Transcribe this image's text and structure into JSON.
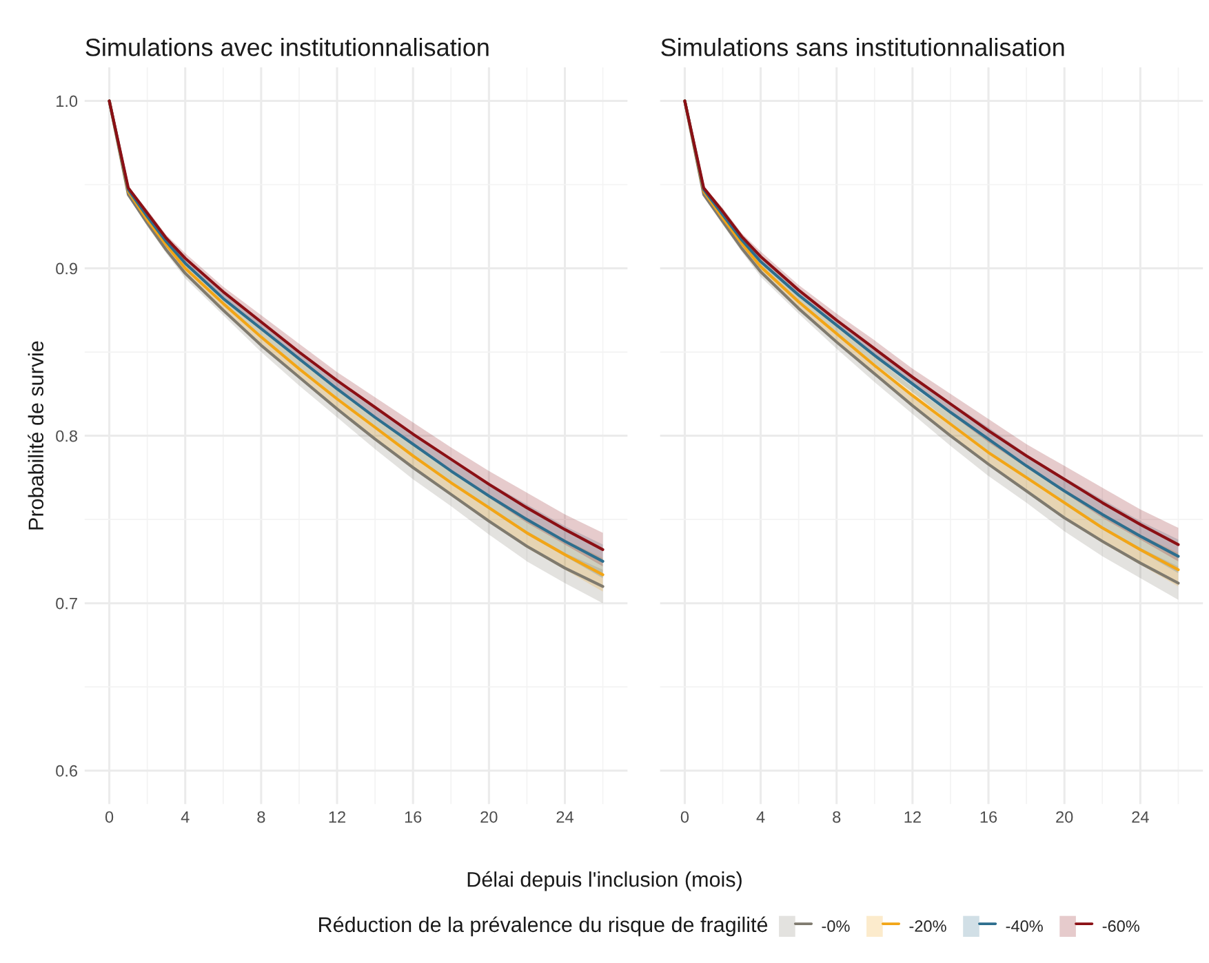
{
  "chart_data": [
    {
      "type": "line",
      "title": "Simulations avec institutionnalisation",
      "xlabel": "Délai depuis l'inclusion (mois)",
      "ylabel": "Probabilité de survie",
      "legend_title": "Réduction de la prévalence du risque de fragilité",
      "legend": "bottom",
      "grid": true,
      "line_style": "solid",
      "x": [
        0,
        1,
        2,
        3,
        4,
        6,
        8,
        10,
        12,
        14,
        16,
        18,
        20,
        22,
        24,
        26
      ],
      "xlim": [
        -1.3,
        27.3
      ],
      "xticks": [
        0,
        4,
        8,
        12,
        16,
        20,
        24
      ],
      "ylim": [
        0.58,
        1.02
      ],
      "yticks": [
        0.6,
        0.7,
        0.8,
        0.9,
        {
          "value": 1.0,
          "label": "1.0"
        }
      ],
      "series": [
        {
          "name": "-0%",
          "color": "#7f7a6e",
          "values": [
            1.0,
            0.944,
            0.927,
            0.911,
            0.897,
            0.875,
            0.854,
            0.835,
            0.816,
            0.798,
            0.781,
            0.765,
            0.749,
            0.734,
            0.721,
            0.71
          ],
          "lower": [
            1.0,
            0.943,
            0.925,
            0.909,
            0.894,
            0.872,
            0.85,
            0.83,
            0.811,
            0.792,
            0.774,
            0.758,
            0.741,
            0.725,
            0.712,
            0.7
          ],
          "upper": [
            1.0,
            0.945,
            0.929,
            0.913,
            0.9,
            0.878,
            0.858,
            0.84,
            0.821,
            0.804,
            0.788,
            0.772,
            0.757,
            0.743,
            0.73,
            0.72
          ]
        },
        {
          "name": "-20%",
          "color": "#f2a516",
          "values": [
            1.0,
            0.946,
            0.929,
            0.914,
            0.9,
            0.879,
            0.859,
            0.84,
            0.822,
            0.805,
            0.788,
            0.772,
            0.757,
            0.742,
            0.729,
            0.717
          ],
          "lower": [
            1.0,
            0.945,
            0.927,
            0.912,
            0.897,
            0.876,
            0.855,
            0.835,
            0.817,
            0.799,
            0.781,
            0.765,
            0.749,
            0.733,
            0.72,
            0.707
          ],
          "upper": [
            1.0,
            0.947,
            0.931,
            0.916,
            0.903,
            0.882,
            0.863,
            0.845,
            0.827,
            0.811,
            0.795,
            0.779,
            0.765,
            0.751,
            0.738,
            0.727
          ]
        },
        {
          "name": "-40%",
          "color": "#2d6e8e",
          "values": [
            1.0,
            0.947,
            0.931,
            0.916,
            0.903,
            0.882,
            0.864,
            0.846,
            0.828,
            0.811,
            0.795,
            0.779,
            0.764,
            0.75,
            0.737,
            0.725
          ],
          "lower": [
            1.0,
            0.946,
            0.929,
            0.914,
            0.9,
            0.879,
            0.86,
            0.841,
            0.823,
            0.805,
            0.788,
            0.772,
            0.756,
            0.741,
            0.728,
            0.715
          ],
          "upper": [
            1.0,
            0.948,
            0.933,
            0.918,
            0.906,
            0.885,
            0.868,
            0.851,
            0.833,
            0.817,
            0.802,
            0.786,
            0.772,
            0.759,
            0.746,
            0.735
          ]
        },
        {
          "name": "-60%",
          "color": "#8b1015",
          "values": [
            1.0,
            0.948,
            0.933,
            0.918,
            0.906,
            0.886,
            0.868,
            0.85,
            0.833,
            0.817,
            0.801,
            0.786,
            0.771,
            0.757,
            0.744,
            0.732
          ],
          "lower": [
            1.0,
            0.947,
            0.931,
            0.916,
            0.903,
            0.883,
            0.864,
            0.845,
            0.828,
            0.811,
            0.794,
            0.779,
            0.763,
            0.748,
            0.735,
            0.722
          ],
          "upper": [
            1.0,
            0.949,
            0.935,
            0.92,
            0.909,
            0.889,
            0.872,
            0.855,
            0.838,
            0.823,
            0.808,
            0.793,
            0.779,
            0.766,
            0.753,
            0.742
          ]
        }
      ]
    },
    {
      "type": "line",
      "title": "Simulations sans institutionnalisation",
      "grid": true,
      "line_style": "solid",
      "tick_labels": "x",
      "x": [
        0,
        1,
        2,
        3,
        4,
        6,
        8,
        10,
        12,
        14,
        16,
        18,
        20,
        22,
        24,
        26
      ],
      "xlim": [
        -1.3,
        27.3
      ],
      "xticks": [
        0,
        4,
        8,
        12,
        16,
        20,
        24
      ],
      "ylim": [
        0.58,
        1.02
      ],
      "yticks": [
        0.6,
        0.7,
        0.8,
        0.9,
        1.0
      ],
      "series": [
        {
          "color": "#7f7a6e",
          "values": [
            1.0,
            0.944,
            0.928,
            0.912,
            0.898,
            0.876,
            0.856,
            0.837,
            0.818,
            0.8,
            0.783,
            0.767,
            0.751,
            0.737,
            0.724,
            0.712
          ],
          "lower": [
            1.0,
            0.943,
            0.926,
            0.91,
            0.895,
            0.873,
            0.852,
            0.832,
            0.813,
            0.794,
            0.776,
            0.76,
            0.743,
            0.728,
            0.715,
            0.702
          ],
          "upper": [
            1.0,
            0.945,
            0.93,
            0.914,
            0.901,
            0.879,
            0.86,
            0.842,
            0.823,
            0.806,
            0.79,
            0.774,
            0.759,
            0.746,
            0.733,
            0.722
          ]
        },
        {
          "color": "#f2a516",
          "values": [
            1.0,
            0.946,
            0.93,
            0.915,
            0.901,
            0.88,
            0.861,
            0.842,
            0.824,
            0.807,
            0.79,
            0.775,
            0.76,
            0.745,
            0.732,
            0.72
          ],
          "lower": [
            1.0,
            0.945,
            0.928,
            0.913,
            0.898,
            0.877,
            0.857,
            0.837,
            0.819,
            0.801,
            0.783,
            0.768,
            0.752,
            0.736,
            0.723,
            0.71
          ],
          "upper": [
            1.0,
            0.947,
            0.932,
            0.917,
            0.904,
            0.883,
            0.865,
            0.847,
            0.829,
            0.813,
            0.797,
            0.782,
            0.768,
            0.754,
            0.741,
            0.73
          ]
        },
        {
          "color": "#2d6e8e",
          "values": [
            1.0,
            0.947,
            0.932,
            0.917,
            0.904,
            0.884,
            0.866,
            0.848,
            0.831,
            0.814,
            0.798,
            0.782,
            0.767,
            0.753,
            0.74,
            0.728
          ],
          "lower": [
            1.0,
            0.946,
            0.93,
            0.915,
            0.901,
            0.881,
            0.862,
            0.843,
            0.826,
            0.808,
            0.791,
            0.775,
            0.759,
            0.744,
            0.731,
            0.718
          ],
          "upper": [
            1.0,
            0.948,
            0.934,
            0.919,
            0.907,
            0.887,
            0.87,
            0.853,
            0.836,
            0.82,
            0.805,
            0.789,
            0.775,
            0.762,
            0.749,
            0.738
          ]
        },
        {
          "color": "#8b1015",
          "values": [
            1.0,
            0.948,
            0.934,
            0.919,
            0.907,
            0.887,
            0.869,
            0.852,
            0.835,
            0.819,
            0.803,
            0.788,
            0.774,
            0.76,
            0.747,
            0.735
          ],
          "lower": [
            1.0,
            0.947,
            0.932,
            0.917,
            0.904,
            0.884,
            0.865,
            0.847,
            0.83,
            0.813,
            0.796,
            0.781,
            0.766,
            0.751,
            0.738,
            0.725
          ],
          "upper": [
            1.0,
            0.949,
            0.936,
            0.921,
            0.91,
            0.89,
            0.873,
            0.857,
            0.84,
            0.825,
            0.81,
            0.795,
            0.782,
            0.769,
            0.756,
            0.745
          ]
        }
      ]
    }
  ]
}
